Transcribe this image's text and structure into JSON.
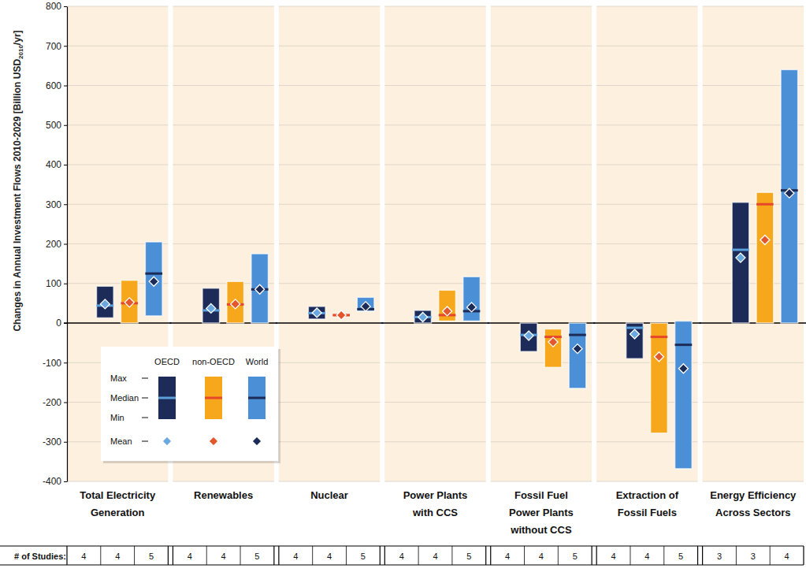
{
  "chart_data": {
    "type": "range",
    "ylabel": [
      "Changes in Annual Investment Flows 2010-2029 [Billion USD",
      "2010",
      "/yr]"
    ],
    "categories": [
      "Total Electricity\nGeneration",
      "Renewables",
      "Nuclear",
      "Power Plants\nwith CCS",
      "Fossil Fuel\nPower Plants\nwithout CCS",
      "Extraction of\nFossil Fuels",
      "Energy Efficiency\nAcross Sectors"
    ],
    "series": [
      {
        "name": "OECD",
        "color": "#1c2b57",
        "max": [
          93,
          88,
          42,
          32,
          0,
          0,
          305
        ],
        "min": [
          13,
          0,
          10,
          0,
          -72,
          -90,
          0
        ],
        "median": [
          44,
          32,
          25,
          15,
          -30,
          -12,
          185
        ],
        "mean": [
          48,
          37,
          26,
          15,
          -32,
          -28,
          165
        ],
        "studies": [
          4,
          4,
          4,
          4,
          4,
          4,
          3
        ]
      },
      {
        "name": "non-OECD",
        "color": "#f6a71c",
        "max": [
          108,
          105,
          20,
          83,
          -15,
          0,
          330
        ],
        "min": [
          0,
          0,
          20,
          5,
          -112,
          -278,
          0
        ],
        "median": [
          50,
          47,
          20,
          20,
          -35,
          -35,
          300
        ],
        "mean": [
          52,
          48,
          20,
          30,
          -48,
          -85,
          210
        ],
        "studies": [
          4,
          4,
          4,
          4,
          4,
          4,
          3
        ]
      },
      {
        "name": "World",
        "color": "#4b8fd6",
        "max": [
          205,
          175,
          65,
          117,
          0,
          5,
          640
        ],
        "min": [
          18,
          0,
          30,
          5,
          -165,
          -368,
          0
        ],
        "median": [
          125,
          85,
          35,
          30,
          -30,
          -55,
          335
        ],
        "mean": [
          105,
          85,
          42,
          40,
          -65,
          -115,
          328
        ],
        "studies": [
          5,
          5,
          5,
          5,
          5,
          5,
          4
        ]
      }
    ],
    "stat_labels": [
      "Max",
      "Median",
      "Min",
      "Mean"
    ],
    "studies_label": "# of Studies:",
    "ylim": [
      -400,
      800
    ],
    "yticks": [
      -400,
      -300,
      -200,
      -100,
      0,
      100,
      200,
      300,
      400,
      500,
      600,
      700,
      800
    ],
    "grid": true
  }
}
